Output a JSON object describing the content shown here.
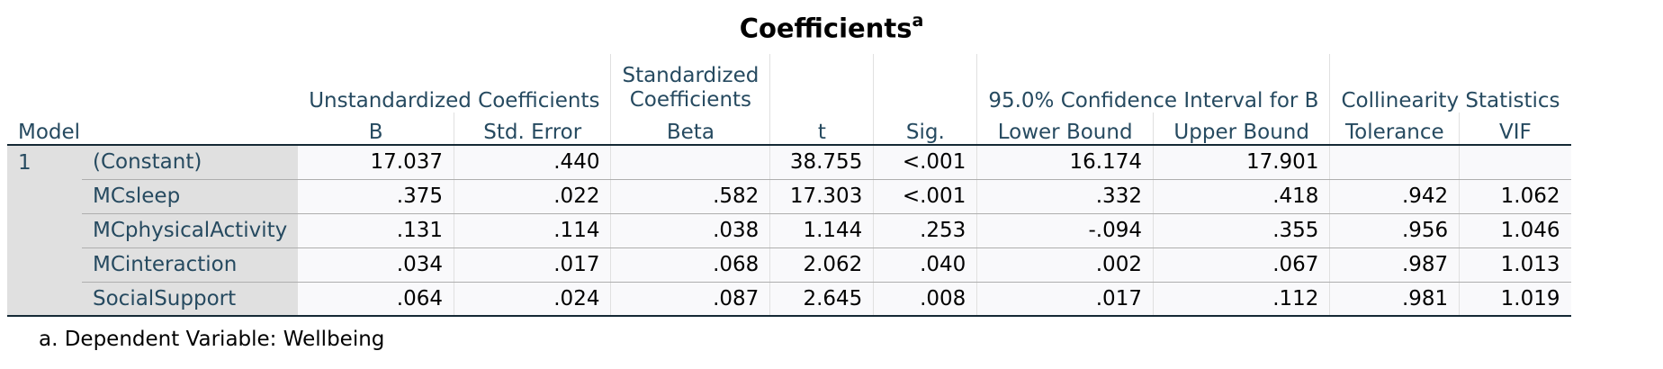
{
  "title": "Coefficients",
  "title_sup": "a",
  "headers": {
    "model": "Model",
    "unstd_group": "Unstandardized Coefficients",
    "std_group_line1": "Standardized",
    "std_group_line2": "Coefficients",
    "ci_group": "95.0% Confidence Interval for B",
    "collin_group": "Collinearity Statistics",
    "b": "B",
    "std_error": "Std. Error",
    "beta": "Beta",
    "t": "t",
    "sig": "Sig.",
    "lower_bound": "Lower Bound",
    "upper_bound": "Upper Bound",
    "tolerance": "Tolerance",
    "vif": "VIF"
  },
  "model_number": "1",
  "rows": [
    {
      "label": "(Constant)",
      "b": "17.037",
      "se": ".440",
      "beta": "",
      "t": "38.755",
      "sig": "<.001",
      "lower": "16.174",
      "upper": "17.901",
      "tol": "",
      "vif": ""
    },
    {
      "label": "MCsleep",
      "b": ".375",
      "se": ".022",
      "beta": ".582",
      "t": "17.303",
      "sig": "<.001",
      "lower": ".332",
      "upper": ".418",
      "tol": ".942",
      "vif": "1.062"
    },
    {
      "label": "MCphysicalActivity",
      "b": ".131",
      "se": ".114",
      "beta": ".038",
      "t": "1.144",
      "sig": ".253",
      "lower": "-.094",
      "upper": ".355",
      "tol": ".956",
      "vif": "1.046"
    },
    {
      "label": "MCinteraction",
      "b": ".034",
      "se": ".017",
      "beta": ".068",
      "t": "2.062",
      "sig": ".040",
      "lower": ".002",
      "upper": ".067",
      "tol": ".987",
      "vif": "1.013"
    },
    {
      "label": "SocialSupport",
      "b": ".064",
      "se": ".024",
      "beta": ".087",
      "t": "2.645",
      "sig": ".008",
      "lower": ".017",
      "upper": ".112",
      "tol": ".981",
      "vif": "1.019"
    }
  ],
  "footnote": "a. Dependent Variable: Wellbeing",
  "colors": {
    "header_text": "#264a60",
    "row_header_bg": "#e0e0e0",
    "cell_bg": "#f9f9fb",
    "rule": "#152935"
  }
}
